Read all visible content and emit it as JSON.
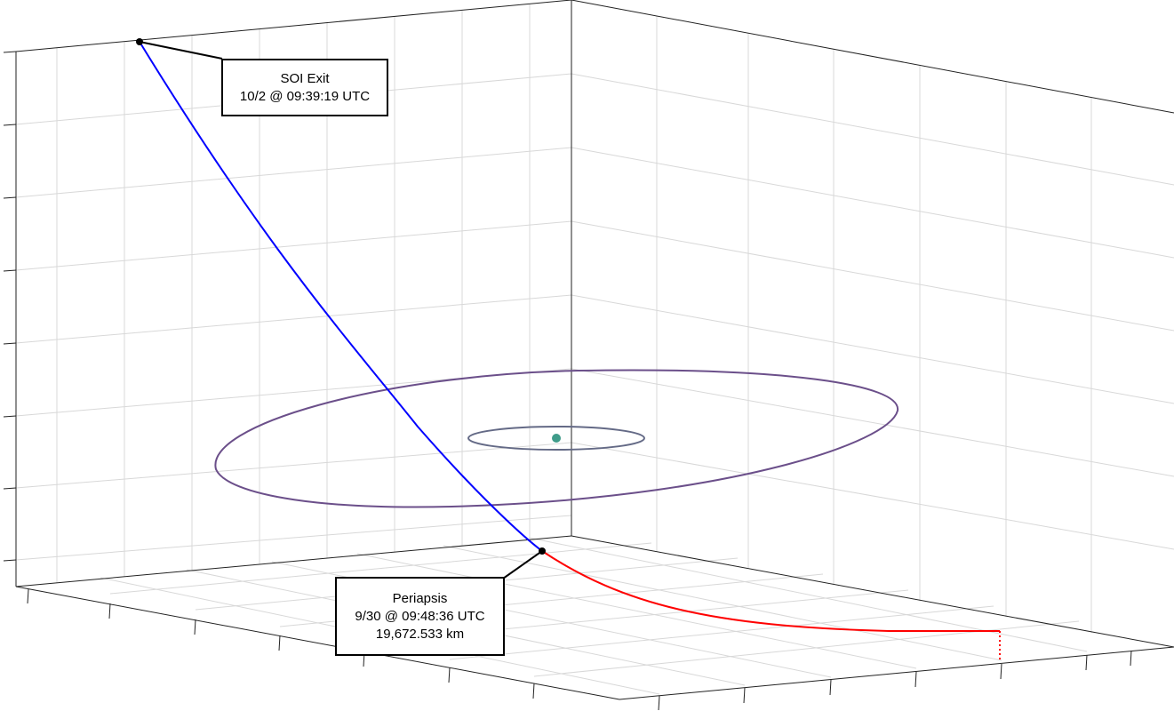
{
  "colors": {
    "background": "#ffffff",
    "grid": "#d4d4d4",
    "axis": "#222222",
    "departure_trajectory": "#0000ff",
    "arrival_trajectory": "#ff0000",
    "parking_orbit": "#6b4f8a",
    "inner_orbit": "#646a86",
    "central_body": "#3f9c8a",
    "marker": "#000000"
  },
  "annotations": {
    "soi_exit": {
      "title": "SOI Exit",
      "time": "10/2 @ 09:39:19 UTC"
    },
    "periapsis": {
      "title": "Periapsis",
      "time": "9/30 @ 09:48:36 UTC",
      "altitude": "19,672.533 km"
    }
  }
}
